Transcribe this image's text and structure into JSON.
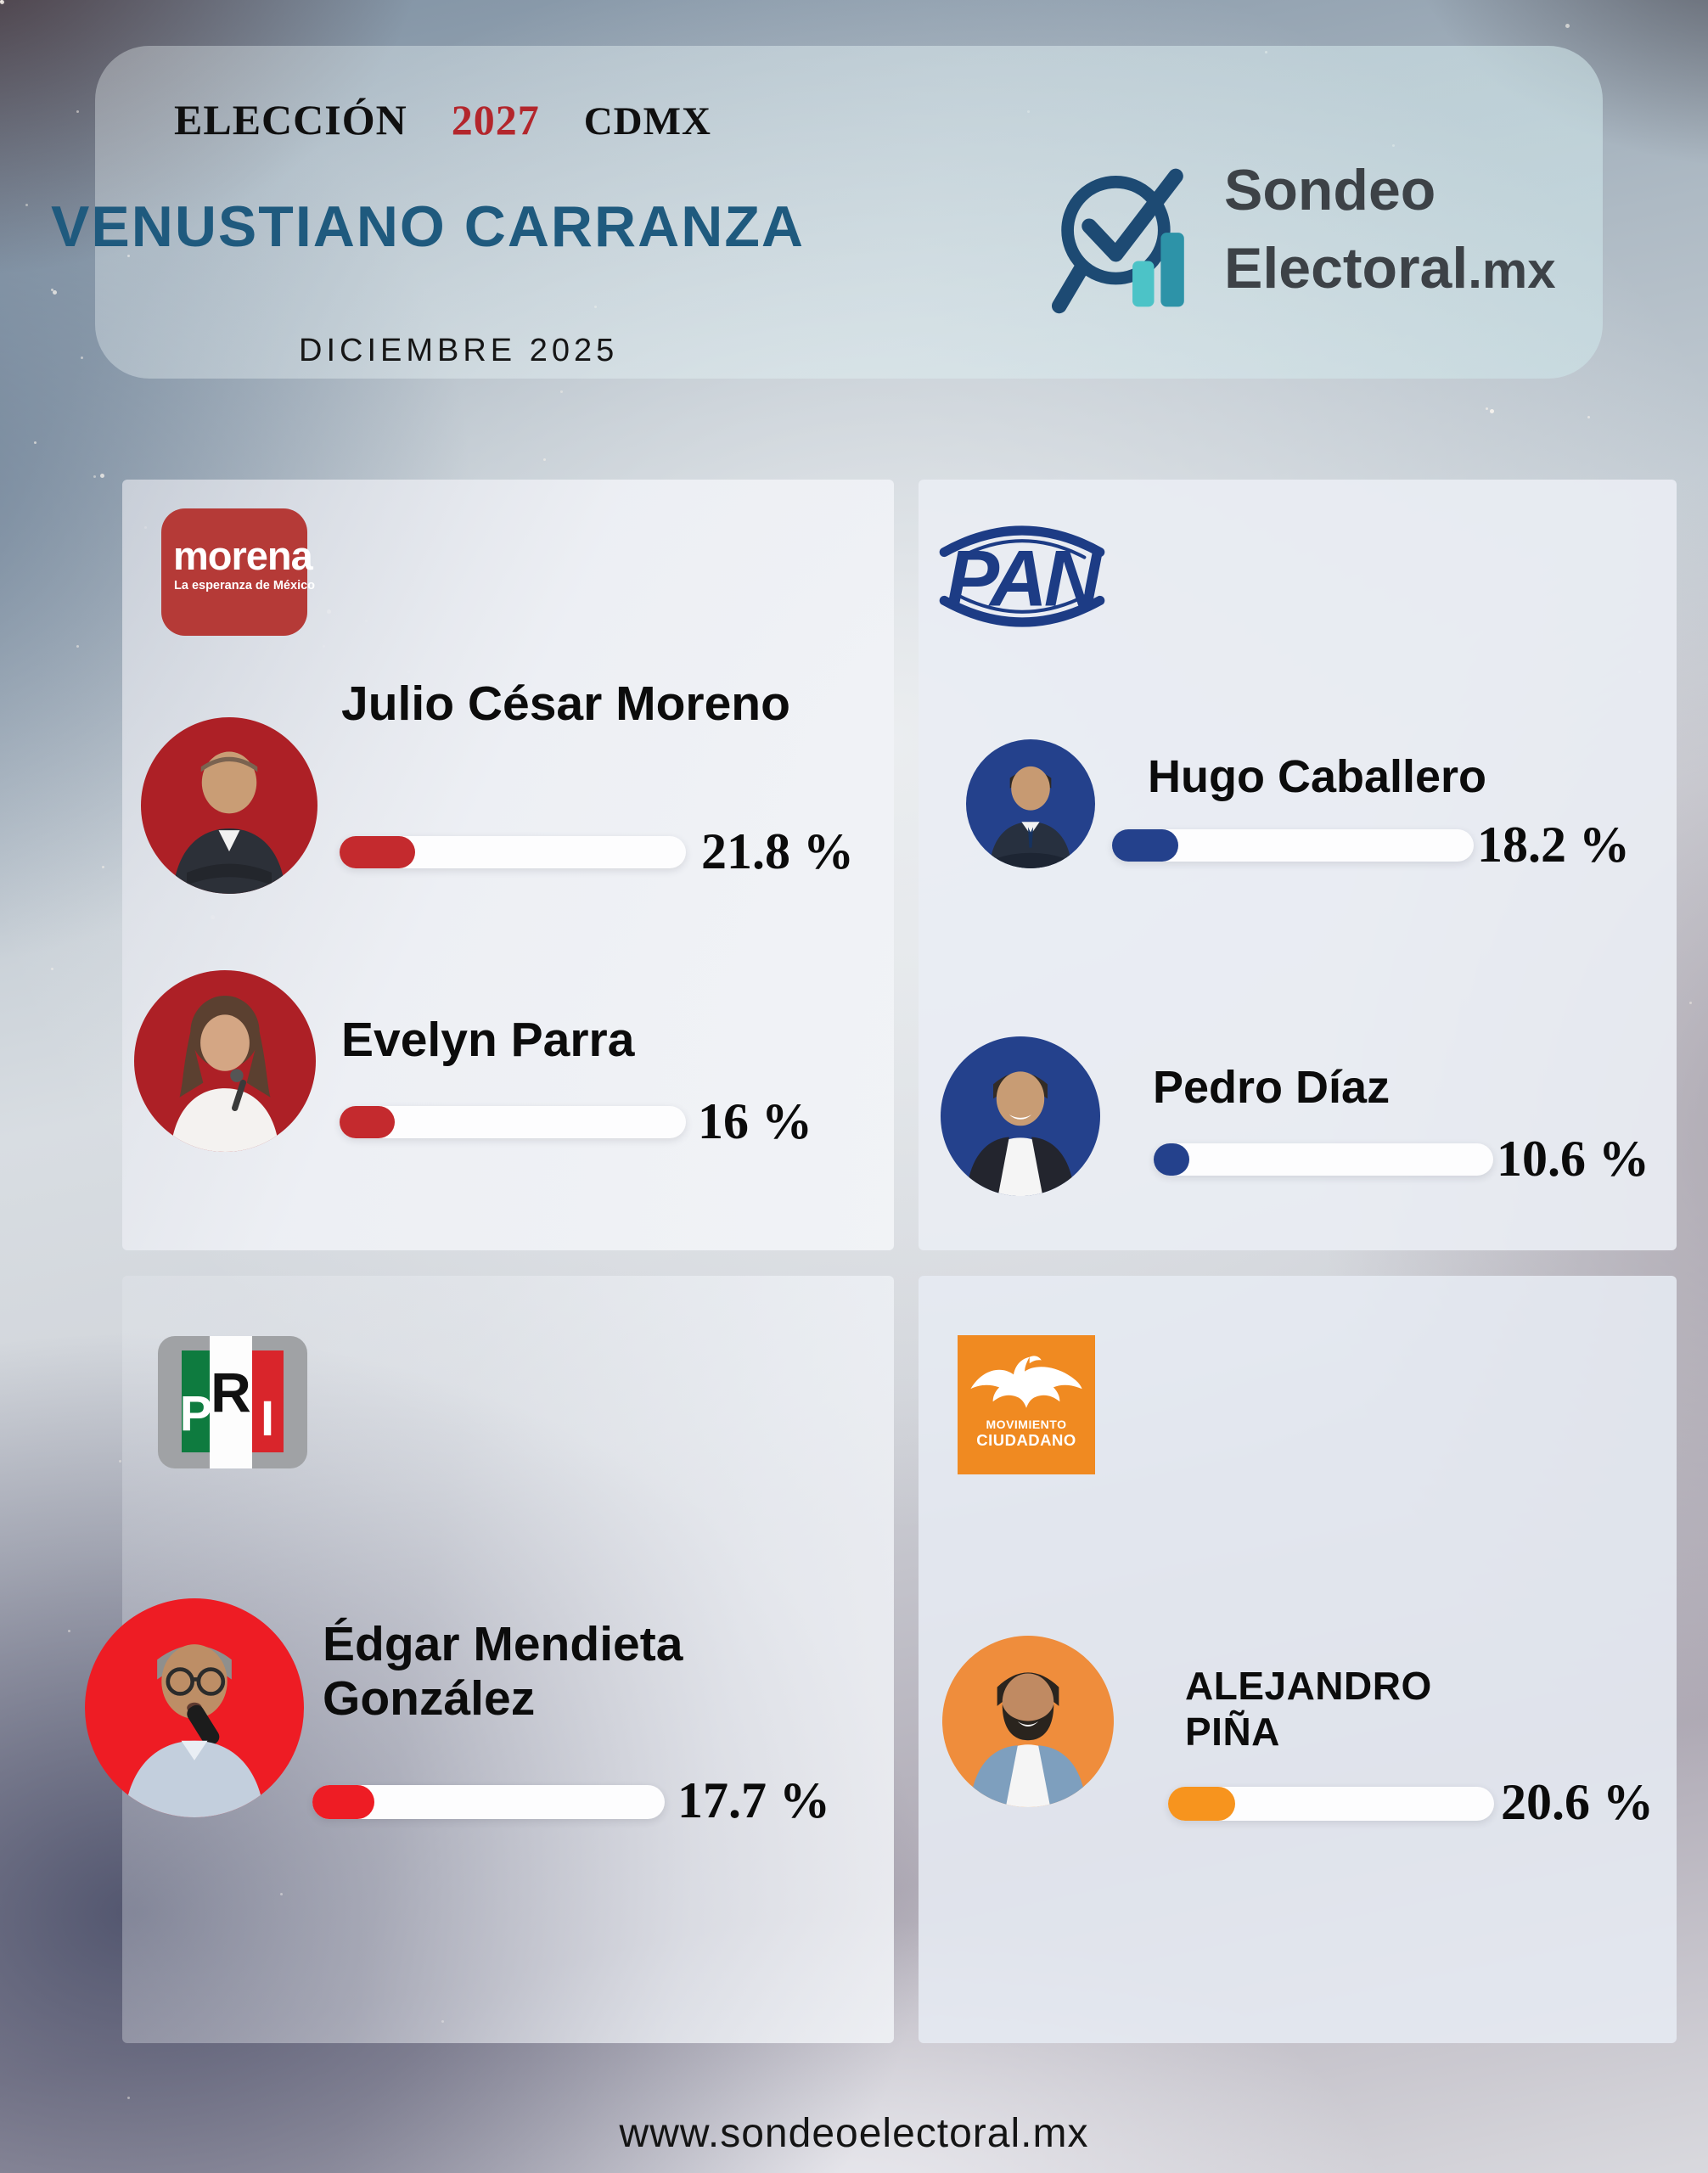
{
  "header": {
    "election_label": "ELECCIÓN",
    "election_year": "2027",
    "region": "CDMX",
    "title": "VENUSTIANO CARRANZA",
    "date": "DICIEMBRE 2025"
  },
  "brand": {
    "line1": "Sondeo",
    "line2": "Electoral",
    "suffix": ".mx"
  },
  "cards": [
    {
      "party": "MORENA",
      "logo": {
        "word": "morena",
        "tagline": "La esperanza de México"
      },
      "candidates": [
        {
          "name": "Julio César Moreno",
          "percent": 21.8,
          "percent_label": "21.8 %"
        },
        {
          "name": "Evelyn Parra",
          "percent": 16,
          "percent_label": "16 %"
        }
      ]
    },
    {
      "party": "PAN",
      "logo": {
        "text": "PAN"
      },
      "candidates": [
        {
          "name": "Hugo Caballero",
          "percent": 18.2,
          "percent_label": "18.2 %"
        },
        {
          "name": "Pedro Díaz",
          "percent": 10.6,
          "percent_label": "10.6 %"
        }
      ]
    },
    {
      "party": "PRI",
      "logo": {
        "letters": [
          "P",
          "R",
          "I"
        ]
      },
      "candidates": [
        {
          "name_lines": [
            "Édgar Mendieta",
            "González"
          ],
          "percent": 17.7,
          "percent_label": "17.7 %"
        }
      ]
    },
    {
      "party": "MOVIMIENTO CIUDADANO",
      "logo": {
        "lines": [
          "MOVIMIENTO",
          "CIUDADANO"
        ]
      },
      "candidates": [
        {
          "name_lines": [
            "ALEJANDRO",
            "PIÑA"
          ],
          "percent": 20.6,
          "percent_label": "20.6 %"
        }
      ]
    }
  ],
  "footer": {
    "website": "www.sondeoelectoral.mx"
  },
  "colors": {
    "title_blue": "#1f5a7e",
    "year_red": "#b3262c",
    "brand_navy": "#1d4a73",
    "brand_teal_light": "#4cc3c7",
    "brand_teal_dark": "#2d93a8",
    "brand_text_gray": "#3d4247",
    "morena_logo_red": "#b53a37",
    "morena_bar_red": "#c42a2e",
    "morena_avatar_red": "#ad2026",
    "pan_navy": "#1d3c85",
    "pan_bar_navy": "#24418c",
    "pri_gray": "#a0a2a5",
    "pri_green": "#0e7b3f",
    "pri_red": "#d9252b",
    "pri_bright_red": "#ee1c24",
    "mc_orange": "#f08a21",
    "mc_bar_orange": "#f7941e",
    "mc_avatar_orange": "#ef8d3c",
    "bar_track_white": "#fdfdfe"
  },
  "chart_data": {
    "type": "bar",
    "title": "VENUSTIANO CARRANZA",
    "subtitle": "ELECCIÓN 2027 CDMX — DICIEMBRE 2025",
    "unit": "%",
    "xlim": [
      0,
      100
    ],
    "series": [
      {
        "party": "MORENA",
        "candidate": "Julio César Moreno",
        "value": 21.8
      },
      {
        "party": "MORENA",
        "candidate": "Evelyn Parra",
        "value": 16
      },
      {
        "party": "PAN",
        "candidate": "Hugo Caballero",
        "value": 18.2
      },
      {
        "party": "PAN",
        "candidate": "Pedro Díaz",
        "value": 10.6
      },
      {
        "party": "PRI",
        "candidate": "Édgar Mendieta González",
        "value": 17.7
      },
      {
        "party": "MOVIMIENTO CIUDADANO",
        "candidate": "ALEJANDRO PIÑA",
        "value": 20.6
      }
    ]
  }
}
